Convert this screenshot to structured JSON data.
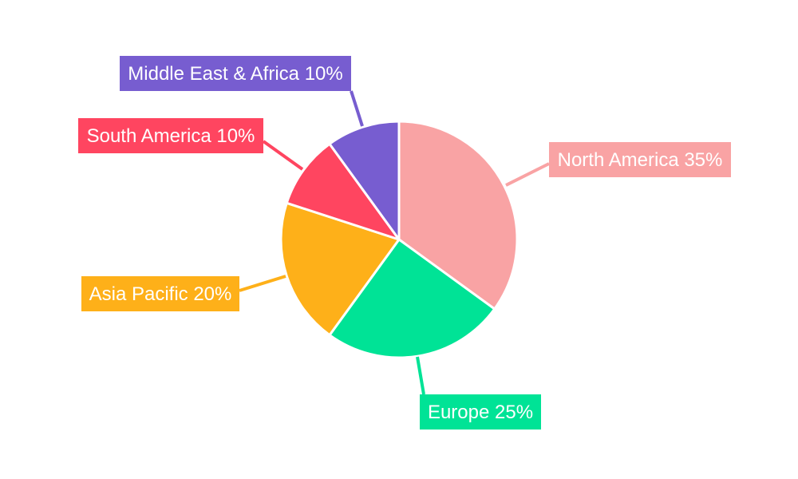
{
  "chart_data": {
    "type": "pie",
    "title": "",
    "start": "top",
    "direction": "clockwise",
    "slices": [
      {
        "label": "North America",
        "value": 35,
        "display": "North America 35%",
        "color": "#F9A3A4"
      },
      {
        "label": "Europe",
        "value": 25,
        "display": "Europe 25%",
        "color": "#00E396"
      },
      {
        "label": "Asia Pacific",
        "value": 20,
        "display": "Asia Pacific 20%",
        "color": "#FEB019"
      },
      {
        "label": "South America",
        "value": 10,
        "display": "South America 10%",
        "color": "#FF4560"
      },
      {
        "label": "Middle East & Africa",
        "value": 10,
        "display": "Middle East & Africa 10%",
        "color": "#775DD0"
      }
    ]
  }
}
